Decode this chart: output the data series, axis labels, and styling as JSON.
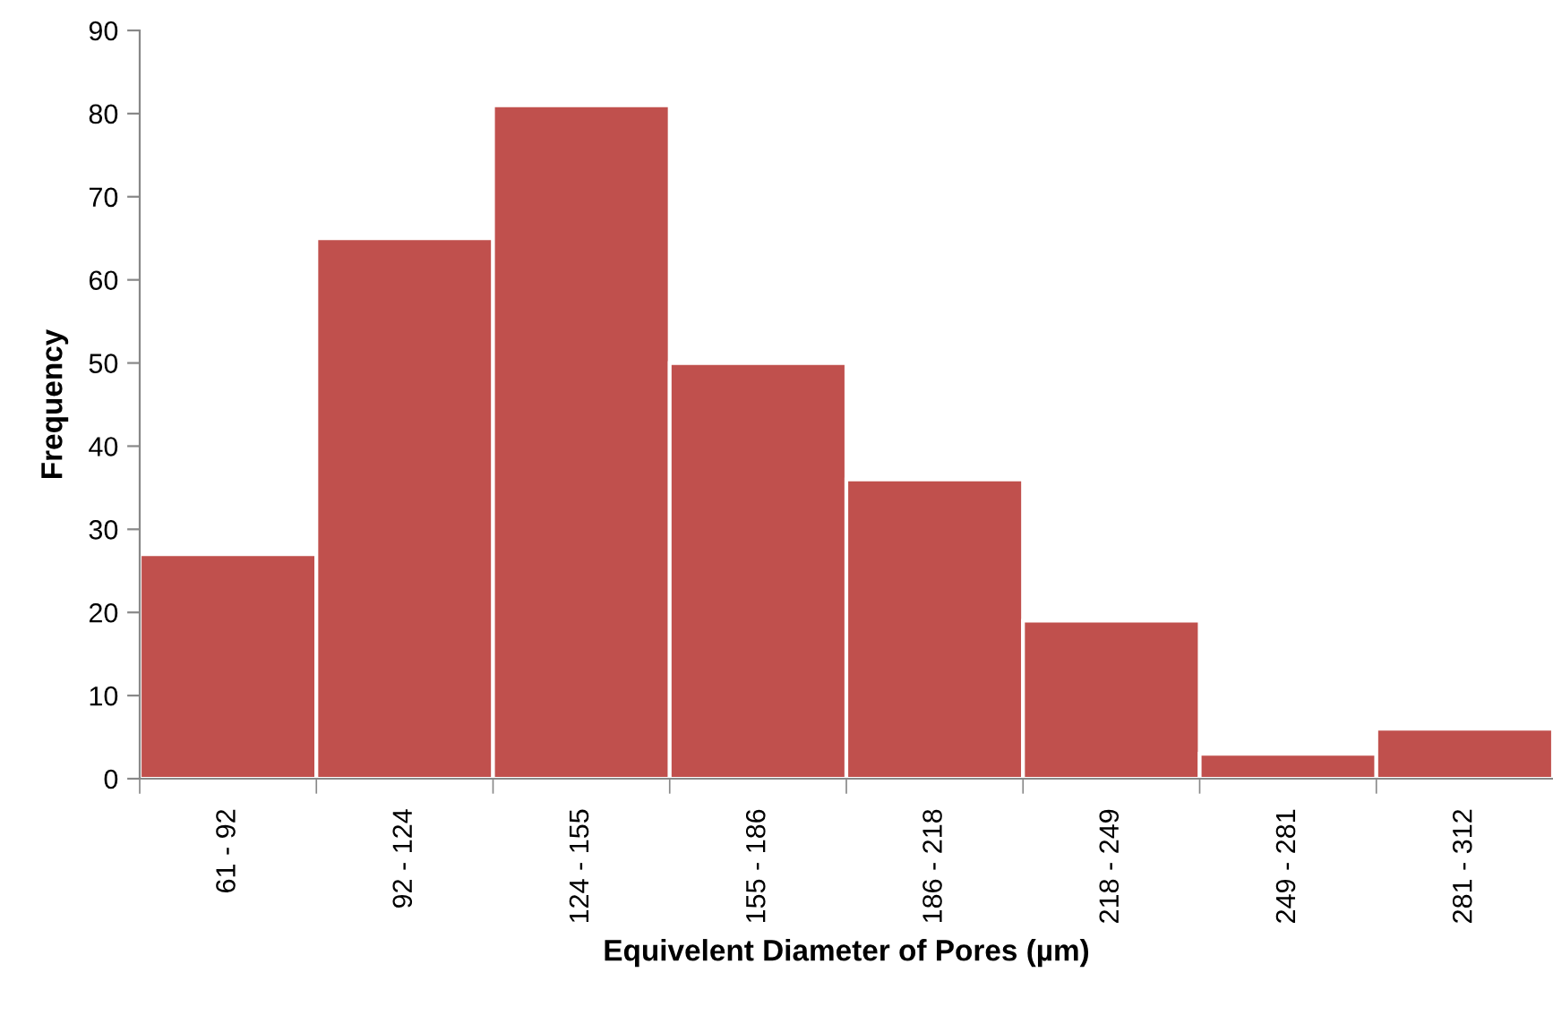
{
  "chart_data": {
    "type": "bar",
    "xlabel": "Equivelent Diameter of Pores (µm)",
    "ylabel": "Frequency",
    "categories": [
      "61 - 92",
      "92 - 124",
      "124 - 155",
      "155 - 186",
      "186 - 218",
      "218 - 249",
      "249 - 281",
      "281 - 312"
    ],
    "values": [
      27,
      65,
      81,
      50,
      36,
      19,
      3,
      6
    ],
    "color": "#c0504d",
    "ylim": [
      0,
      90
    ],
    "yticks": [
      0,
      10,
      20,
      30,
      40,
      50,
      60,
      70,
      80,
      90
    ],
    "grid": false,
    "legend": false
  }
}
